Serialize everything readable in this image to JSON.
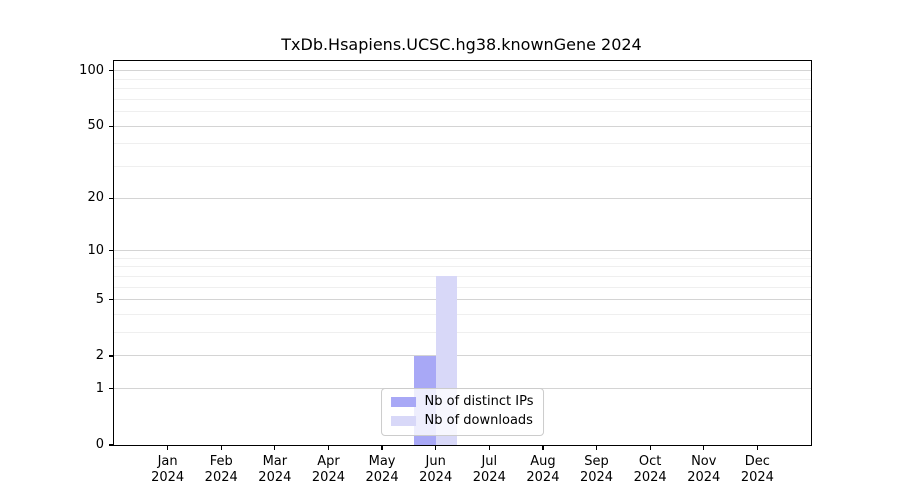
{
  "chart_data": {
    "type": "bar",
    "title": "TxDb.Hsapiens.UCSC.hg38.knownGene 2024",
    "categories": [
      "Jan",
      "Feb",
      "Mar",
      "Apr",
      "May",
      "Jun",
      "Jul",
      "Aug",
      "Sep",
      "Oct",
      "Nov",
      "Dec"
    ],
    "x_year_label": "2024",
    "series": [
      {
        "name": "Nb of distinct IPs",
        "color": "#a8a8f6",
        "values": [
          0,
          0,
          0,
          0,
          0,
          2,
          0,
          0,
          0,
          0,
          0,
          0
        ]
      },
      {
        "name": "Nb of downloads",
        "color": "#d8d8f8",
        "values": [
          0,
          0,
          0,
          0,
          0,
          7,
          0,
          0,
          0,
          0,
          0,
          0
        ]
      }
    ],
    "yscale": "log1p",
    "ylim": [
      0,
      113
    ],
    "yticks": [
      0,
      1,
      2,
      5,
      10,
      20,
      50,
      100
    ],
    "yticks_minor": [
      3,
      4,
      6,
      7,
      8,
      9,
      30,
      40,
      60,
      70,
      80,
      90
    ],
    "grid": "horizontal",
    "grid_color": "#d4d4d4",
    "grid_minor_color": "#efefef",
    "axis_color": "#000000",
    "bar_width_fraction": 0.4,
    "legend_position": "bottom-center"
  }
}
